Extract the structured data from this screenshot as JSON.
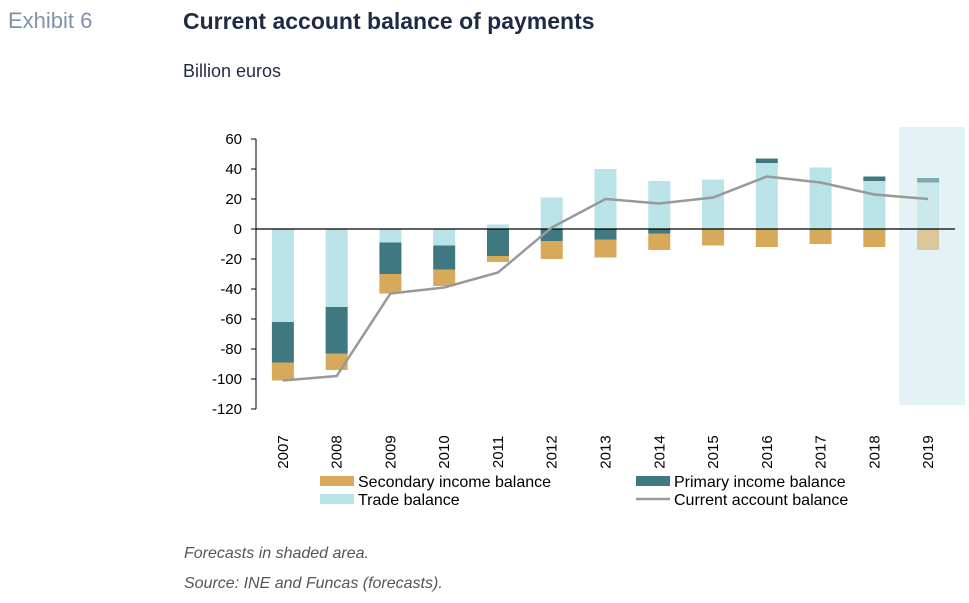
{
  "header": {
    "exhibit": "Exhibit 6",
    "title": "Current account balance of payments",
    "subtitle": "Billion euros"
  },
  "notes": {
    "forecast": "Forecasts in shaded area.",
    "source": "Source: INE and Funcas (forecasts)."
  },
  "colors": {
    "trade": "#b9e3e6",
    "primary": "#3f7880",
    "secondary": "#d6a95b",
    "current": "#999999",
    "forecast_shade": "#e3f3f5"
  },
  "chart_data": {
    "type": "bar",
    "stacked": true,
    "categories": [
      "2007",
      "2008",
      "2009",
      "2010",
      "2011",
      "2012",
      "2013",
      "2014",
      "2015",
      "2016",
      "2017",
      "2018",
      "2019"
    ],
    "series": [
      {
        "name": "Trade balance",
        "kind": "bar",
        "values": [
          -62,
          -52,
          -9,
          -11,
          3,
          21,
          40,
          32,
          33,
          44,
          41,
          32,
          31
        ]
      },
      {
        "name": "Primary income balance",
        "kind": "bar",
        "values": [
          -27,
          -31,
          -21,
          -16,
          -18,
          -8,
          -7,
          -3,
          0,
          3,
          0,
          3,
          3
        ]
      },
      {
        "name": "Secondary income balance",
        "kind": "bar",
        "values": [
          -12,
          -11,
          -13,
          -11,
          -4,
          -12,
          -12,
          -11,
          -11,
          -12,
          -10,
          -12,
          -14
        ]
      },
      {
        "name": "Current account balance",
        "kind": "line",
        "values": [
          -101,
          -98,
          -43,
          -39,
          -29,
          1,
          20,
          17,
          21,
          35,
          31,
          23,
          20
        ]
      }
    ],
    "ylim": [
      -120,
      60
    ],
    "yticks": [
      "60",
      "40",
      "20",
      "0",
      "-20",
      "-40",
      "-60",
      "-80",
      "-100",
      "-120"
    ],
    "forecast_from": "2019",
    "legend": [
      {
        "label": "Secondary income balance",
        "kind": "bar"
      },
      {
        "label": "Primary income balance",
        "kind": "bar"
      },
      {
        "label": "Trade balance",
        "kind": "bar"
      },
      {
        "label": "Current account balance",
        "kind": "line"
      }
    ],
    "legend_position": "bottom",
    "grid": false
  }
}
